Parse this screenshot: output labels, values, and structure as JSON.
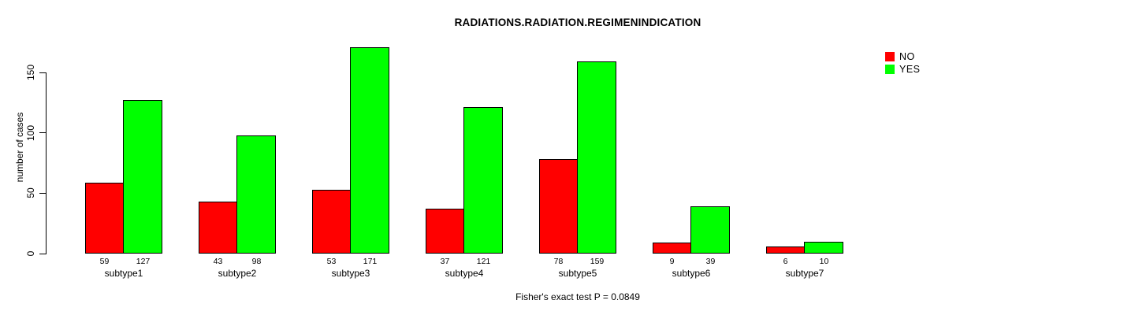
{
  "page": {
    "background": "#ffffff",
    "text_color": "#000000"
  },
  "chart_data": {
    "type": "bar",
    "title": "RADIATIONS.RADIATION.REGIMENINDICATION",
    "ylabel": "number of cases",
    "xlabel": "",
    "categories": [
      "subtype1",
      "subtype2",
      "subtype3",
      "subtype4",
      "subtype5",
      "subtype6",
      "subtype7"
    ],
    "series": [
      {
        "name": "NO",
        "color": "#ff0000",
        "values": [
          59,
          43,
          53,
          37,
          78,
          9,
          6
        ]
      },
      {
        "name": "YES",
        "color": "#00ff00",
        "values": [
          127,
          98,
          171,
          121,
          159,
          39,
          10
        ]
      }
    ],
    "value_labels_shown": true,
    "yticks": [
      0,
      50,
      100,
      150
    ],
    "ylim": [
      0,
      172
    ],
    "grid": false,
    "legend_position": "top-right",
    "bar_edge_color": "#000000",
    "annotation": "Fisher's exact test P = 0.0849"
  }
}
